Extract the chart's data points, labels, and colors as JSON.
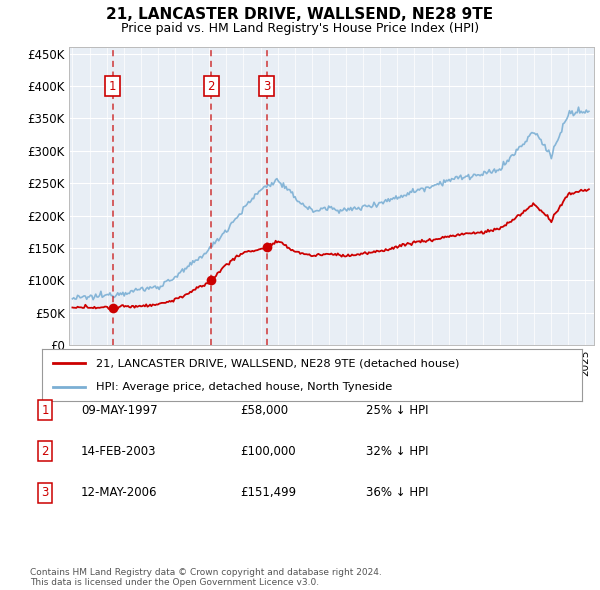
{
  "title": "21, LANCASTER DRIVE, WALLSEND, NE28 9TE",
  "subtitle": "Price paid vs. HM Land Registry's House Price Index (HPI)",
  "footnote": "Contains HM Land Registry data © Crown copyright and database right 2024.\nThis data is licensed under the Open Government Licence v3.0.",
  "legend_line1": "21, LANCASTER DRIVE, WALLSEND, NE28 9TE (detached house)",
  "legend_line2": "HPI: Average price, detached house, North Tyneside",
  "transactions": [
    {
      "num": 1,
      "date": "09-MAY-1997",
      "price": "£58,000",
      "pct": "25% ↓ HPI",
      "year": 1997.36,
      "marker_y": 58000
    },
    {
      "num": 2,
      "date": "14-FEB-2003",
      "price": "£100,000",
      "pct": "32% ↓ HPI",
      "year": 2003.12,
      "marker_y": 100000
    },
    {
      "num": 3,
      "date": "12-MAY-2006",
      "price": "£151,499",
      "pct": "36% ↓ HPI",
      "year": 2006.36,
      "marker_y": 151499
    }
  ],
  "hpi_color": "#7bafd4",
  "price_color": "#cc0000",
  "plot_bg": "#e8eef5",
  "grid_color": "#ffffff",
  "vline_color": "#cc2222",
  "box_color": "#cc0000",
  "ylim": [
    0,
    460000
  ],
  "yticks": [
    0,
    50000,
    100000,
    150000,
    200000,
    250000,
    300000,
    350000,
    400000,
    450000
  ],
  "xlim_start": 1994.8,
  "xlim_end": 2025.5,
  "hpi_anchors_x": [
    1995,
    1996,
    1997,
    1998,
    1999,
    2000,
    2001,
    2002,
    2003,
    2004,
    2005,
    2006,
    2007,
    2008,
    2009,
    2010,
    2011,
    2012,
    2013,
    2014,
    2015,
    2016,
    2017,
    2018,
    2019,
    2020,
    2021,
    2022,
    2023,
    2024,
    2025
  ],
  "hpi_anchors_y": [
    72000,
    74000,
    77000,
    81000,
    86000,
    90000,
    105000,
    125000,
    148000,
    178000,
    210000,
    240000,
    255000,
    228000,
    207000,
    212000,
    208000,
    213000,
    220000,
    228000,
    238000,
    246000,
    255000,
    260000,
    263000,
    272000,
    300000,
    330000,
    293000,
    357000,
    360000
  ],
  "price_anchors_x": [
    1995,
    1996,
    1997.35,
    1997.37,
    1998,
    1999,
    2000,
    2001,
    2002,
    2003.11,
    2003.13,
    2004,
    2005,
    2006.35,
    2006.37,
    2007,
    2008,
    2009,
    2010,
    2011,
    2012,
    2013,
    2014,
    2015,
    2016,
    2017,
    2018,
    2019,
    2020,
    2021,
    2022,
    2023,
    2024,
    2025
  ],
  "price_anchors_y": [
    57000,
    59000,
    57500,
    58000,
    59500,
    60500,
    63000,
    70000,
    83000,
    99000,
    100000,
    125000,
    143000,
    150000,
    151499,
    160000,
    145000,
    138000,
    141000,
    138000,
    141000,
    145000,
    152000,
    159000,
    162000,
    168000,
    172000,
    174000,
    180000,
    198000,
    218000,
    192000,
    233000,
    240000
  ]
}
